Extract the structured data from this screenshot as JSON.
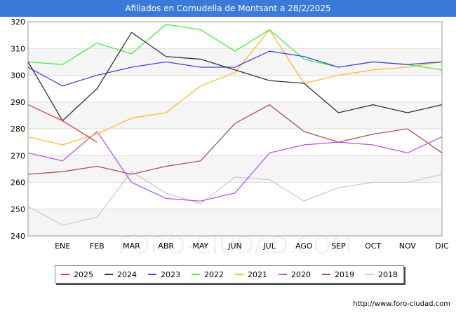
{
  "header": {
    "title": "Afiliados en Cornudella de Montsant a 28/2/2025"
  },
  "watermark": "FORO-CIUDAD.COM",
  "footer": {
    "source": "http://www.foro-ciudad.com"
  },
  "chart_data": {
    "type": "line",
    "title": "Afiliados en Cornudella de Montsant a 28/2/2025",
    "categories": [
      "",
      "ENE",
      "FEB",
      "MAR",
      "ABR",
      "MAY",
      "JUN",
      "JUL",
      "AGO",
      "SEP",
      "OCT",
      "NOV",
      "DIC"
    ],
    "ylim": [
      240,
      320
    ],
    "yticks": [
      240,
      250,
      260,
      270,
      280,
      290,
      300,
      310,
      320
    ],
    "grid": true,
    "legend_position": "bottom",
    "series": [
      {
        "name": "2025",
        "color": "#e04040",
        "values": [
          289,
          283,
          275,
          null,
          null,
          null,
          null,
          null,
          null,
          null,
          null,
          null,
          null
        ]
      },
      {
        "name": "2024",
        "color": "#333333",
        "values": [
          305,
          283,
          295,
          316,
          307,
          306,
          302,
          298,
          297,
          286,
          289,
          286,
          289
        ]
      },
      {
        "name": "2023",
        "color": "#4444dd",
        "values": [
          303,
          296,
          300,
          303,
          305,
          303,
          303,
          309,
          307,
          303,
          305,
          304,
          305
        ]
      },
      {
        "name": "2022",
        "color": "#44ee44",
        "values": [
          305,
          304,
          312,
          308,
          319,
          317,
          309,
          317,
          306,
          303,
          305,
          304,
          302
        ]
      },
      {
        "name": "2021",
        "color": "#ffb833",
        "values": [
          277,
          274,
          278,
          284,
          286,
          296,
          301,
          317,
          297,
          300,
          302,
          303,
          305
        ]
      },
      {
        "name": "2020",
        "color": "#bb55ee",
        "values": [
          271,
          268,
          279,
          260,
          254,
          253,
          256,
          271,
          274,
          275,
          274,
          271,
          277
        ]
      },
      {
        "name": "2019",
        "color": "#aa5555",
        "values": [
          263,
          264,
          266,
          263,
          266,
          268,
          282,
          289,
          279,
          275,
          278,
          280,
          271
        ]
      },
      {
        "name": "2018",
        "color": "#cccccc",
        "values": [
          251,
          244,
          247,
          264,
          256,
          252,
          262,
          261,
          253,
          258,
          260,
          260,
          263
        ]
      }
    ]
  }
}
